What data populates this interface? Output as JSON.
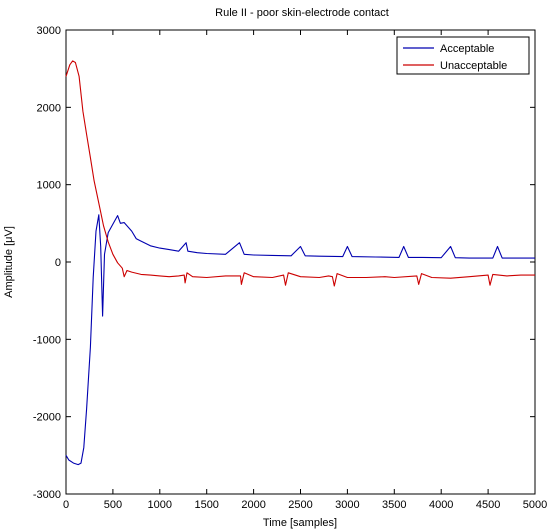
{
  "chart_data": {
    "type": "line",
    "title": "Rule II - poor skin-electrode contact",
    "xlabel": "Time [samples]",
    "ylabel": "Amplitude [μV]",
    "xlim": [
      0,
      5000
    ],
    "ylim": [
      -3000,
      3000
    ],
    "xticks": [
      "0",
      "500",
      "1000",
      "1500",
      "2000",
      "2500",
      "3000",
      "3500",
      "4000",
      "4500",
      "5000"
    ],
    "yticks": [
      "-3000",
      "-2000",
      "-1000",
      "0",
      "1000",
      "2000",
      "3000"
    ],
    "grid": false,
    "legend_position": "top-right",
    "series": [
      {
        "name": "Acceptable",
        "color": "#0000b0",
        "points": [
          [
            0,
            -2500
          ],
          [
            30,
            -2560
          ],
          [
            80,
            -2600
          ],
          [
            130,
            -2620
          ],
          [
            160,
            -2600
          ],
          [
            190,
            -2400
          ],
          [
            220,
            -1900
          ],
          [
            260,
            -1100
          ],
          [
            290,
            -200
          ],
          [
            320,
            400
          ],
          [
            350,
            610
          ],
          [
            370,
            200
          ],
          [
            390,
            -700
          ],
          [
            410,
            100
          ],
          [
            450,
            380
          ],
          [
            500,
            490
          ],
          [
            550,
            600
          ],
          [
            580,
            500
          ],
          [
            620,
            510
          ],
          [
            700,
            400
          ],
          [
            750,
            300
          ],
          [
            800,
            270
          ],
          [
            900,
            210
          ],
          [
            1000,
            180
          ],
          [
            1100,
            160
          ],
          [
            1200,
            140
          ],
          [
            1280,
            250
          ],
          [
            1300,
            140
          ],
          [
            1400,
            120
          ],
          [
            1500,
            110
          ],
          [
            1700,
            100
          ],
          [
            1850,
            250
          ],
          [
            1900,
            100
          ],
          [
            2000,
            90
          ],
          [
            2200,
            85
          ],
          [
            2400,
            80
          ],
          [
            2500,
            200
          ],
          [
            2550,
            80
          ],
          [
            2700,
            75
          ],
          [
            2950,
            70
          ],
          [
            3000,
            200
          ],
          [
            3050,
            70
          ],
          [
            3300,
            65
          ],
          [
            3550,
            60
          ],
          [
            3600,
            200
          ],
          [
            3650,
            60
          ],
          [
            3800,
            60
          ],
          [
            4000,
            55
          ],
          [
            4100,
            200
          ],
          [
            4150,
            55
          ],
          [
            4300,
            50
          ],
          [
            4550,
            50
          ],
          [
            4600,
            200
          ],
          [
            4650,
            50
          ],
          [
            4800,
            50
          ],
          [
            5000,
            50
          ]
        ]
      },
      {
        "name": "Unacceptable",
        "color": "#cc0000",
        "points": [
          [
            0,
            2400
          ],
          [
            40,
            2550
          ],
          [
            70,
            2600
          ],
          [
            100,
            2580
          ],
          [
            140,
            2400
          ],
          [
            180,
            1950
          ],
          [
            220,
            1650
          ],
          [
            260,
            1350
          ],
          [
            300,
            1050
          ],
          [
            360,
            700
          ],
          [
            400,
            470
          ],
          [
            450,
            260
          ],
          [
            500,
            100
          ],
          [
            550,
            -10
          ],
          [
            600,
            -80
          ],
          [
            620,
            -190
          ],
          [
            650,
            -110
          ],
          [
            700,
            -130
          ],
          [
            800,
            -160
          ],
          [
            900,
            -170
          ],
          [
            1000,
            -180
          ],
          [
            1100,
            -190
          ],
          [
            1200,
            -180
          ],
          [
            1260,
            -170
          ],
          [
            1270,
            -270
          ],
          [
            1290,
            -140
          ],
          [
            1350,
            -190
          ],
          [
            1500,
            -200
          ],
          [
            1700,
            -180
          ],
          [
            1860,
            -180
          ],
          [
            1870,
            -290
          ],
          [
            1900,
            -140
          ],
          [
            2000,
            -190
          ],
          [
            2200,
            -200
          ],
          [
            2320,
            -170
          ],
          [
            2340,
            -300
          ],
          [
            2370,
            -140
          ],
          [
            2500,
            -190
          ],
          [
            2700,
            -200
          ],
          [
            2800,
            -180
          ],
          [
            2840,
            -190
          ],
          [
            2860,
            -310
          ],
          [
            2890,
            -150
          ],
          [
            3000,
            -200
          ],
          [
            3200,
            -200
          ],
          [
            3400,
            -190
          ],
          [
            3500,
            -200
          ],
          [
            3740,
            -180
          ],
          [
            3760,
            -290
          ],
          [
            3790,
            -150
          ],
          [
            3900,
            -200
          ],
          [
            4100,
            -210
          ],
          [
            4300,
            -190
          ],
          [
            4500,
            -170
          ],
          [
            4520,
            -300
          ],
          [
            4550,
            -160
          ],
          [
            4700,
            -180
          ],
          [
            4850,
            -170
          ],
          [
            5000,
            -170
          ]
        ]
      }
    ]
  }
}
